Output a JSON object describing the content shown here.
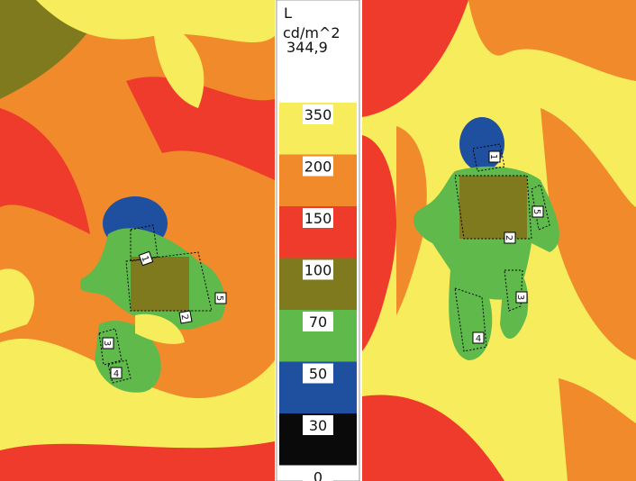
{
  "legend": {
    "title": "L",
    "unit": "cd/m^2",
    "max": "344,9",
    "labels": [
      "350",
      "200",
      "150",
      "100",
      "70",
      "50",
      "30",
      "0"
    ],
    "colors": [
      "#f7ec5c",
      "#f08a2a",
      "#ee3b2b",
      "#7e7a1d",
      "#5fb94b",
      "#1f4f9f",
      "#0a0a0a"
    ]
  },
  "left_panel": {
    "regions": [
      "1",
      "2",
      "3",
      "4",
      "5"
    ]
  },
  "right_panel": {
    "regions": [
      "1",
      "2",
      "3",
      "4",
      "5"
    ]
  }
}
